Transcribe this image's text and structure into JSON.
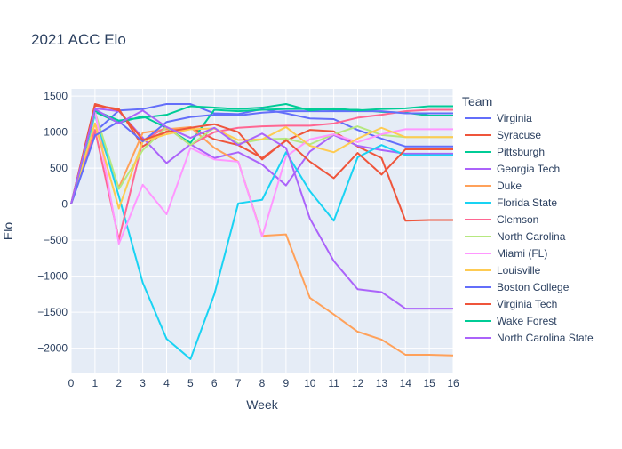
{
  "chart_data": {
    "type": "line",
    "title": "2021 ACC Elo",
    "xlabel": "Week",
    "ylabel": "Elo",
    "legend_title": "Team",
    "legend_position": "right",
    "grid": true,
    "xlim": [
      0,
      16
    ],
    "ylim": [
      -2350,
      1600
    ],
    "x_ticks": [
      0,
      1,
      2,
      3,
      4,
      5,
      6,
      7,
      8,
      9,
      10,
      11,
      12,
      13,
      14,
      15,
      16
    ],
    "y_ticks": [
      -2000,
      -1500,
      -1000,
      -500,
      0,
      500,
      1000,
      1500
    ],
    "y_tick_labels": [
      "−2000",
      "−1500",
      "−1000",
      "−500",
      "0",
      "500",
      "1000",
      "1500"
    ],
    "x": [
      0,
      1,
      2,
      3,
      4,
      5,
      6,
      7,
      8,
      9,
      10,
      11,
      12,
      13,
      14,
      15,
      16
    ],
    "series": [
      {
        "name": "Virginia",
        "color": "#636efa",
        "values": [
          0,
          1000,
          1300,
          1320,
          1390,
          1390,
          1260,
          1250,
          1320,
          1260,
          1190,
          1180,
          1030,
          910,
          800,
          800,
          800
        ]
      },
      {
        "name": "Syracuse",
        "color": "#EF553B",
        "values": [
          0,
          1370,
          1320,
          800,
          1010,
          1070,
          900,
          820,
          640,
          880,
          1030,
          1010,
          800,
          640,
          -230,
          -220,
          -220
        ]
      },
      {
        "name": "Pittsburgh",
        "color": "#00cc96",
        "values": [
          0,
          1280,
          1130,
          1220,
          1060,
          850,
          1310,
          1290,
          1310,
          1320,
          1320,
          1310,
          1310,
          1280,
          1270,
          1230,
          1230
        ]
      },
      {
        "name": "Georgia Tech",
        "color": "#ab63fa",
        "values": [
          0,
          1330,
          1290,
          920,
          570,
          830,
          640,
          720,
          550,
          260,
          730,
          960,
          810,
          750,
          700,
          700,
          700
        ]
      },
      {
        "name": "Duke",
        "color": "#FFA15A",
        "values": [
          0,
          1120,
          230,
          990,
          1040,
          1070,
          780,
          590,
          -440,
          -420,
          -1300,
          -1530,
          -1770,
          -1880,
          -2090,
          -2090,
          -2100
        ]
      },
      {
        "name": "Florida State",
        "color": "#19d3f3",
        "values": [
          0,
          1240,
          110,
          -1090,
          -1870,
          -2150,
          -1250,
          10,
          60,
          720,
          180,
          -230,
          650,
          820,
          680,
          680,
          680
        ]
      },
      {
        "name": "Clemson",
        "color": "#FF6692",
        "values": [
          0,
          1030,
          -490,
          880,
          1070,
          820,
          1000,
          1060,
          1080,
          1090,
          1090,
          1120,
          1200,
          1240,
          1290,
          1310,
          1310
        ]
      },
      {
        "name": "North Carolina",
        "color": "#B6E880",
        "values": [
          0,
          1280,
          210,
          750,
          1070,
          820,
          1060,
          840,
          900,
          910,
          830,
          970,
          1080,
          960,
          930,
          930,
          930
        ]
      },
      {
        "name": "Miami (FL)",
        "color": "#FF97FF",
        "values": [
          0,
          1300,
          -550,
          270,
          -140,
          780,
          620,
          590,
          -450,
          660,
          900,
          970,
          860,
          970,
          1040,
          1040,
          1040
        ]
      },
      {
        "name": "Louisville",
        "color": "#FECB52",
        "values": [
          0,
          1120,
          -60,
          870,
          970,
          1040,
          1050,
          890,
          900,
          1070,
          810,
          720,
          910,
          1060,
          930,
          930,
          930
        ]
      },
      {
        "name": "Boston College",
        "color": "#636efa",
        "values": [
          0,
          950,
          1150,
          870,
          1140,
          1210,
          1240,
          1230,
          1270,
          1290,
          1290,
          1290,
          1290,
          1290,
          1260,
          1260,
          1260
        ]
      },
      {
        "name": "Virginia Tech",
        "color": "#EF553B",
        "values": [
          0,
          1390,
          1300,
          890,
          1000,
          1060,
          1110,
          1000,
          620,
          890,
          590,
          360,
          710,
          410,
          760,
          760,
          760
        ]
      },
      {
        "name": "Wake Forest",
        "color": "#00cc96",
        "values": [
          0,
          1300,
          1160,
          1200,
          1240,
          1360,
          1340,
          1320,
          1340,
          1390,
          1300,
          1330,
          1300,
          1320,
          1330,
          1360,
          1360
        ]
      },
      {
        "name": "North Carolina State",
        "color": "#ab63fa",
        "values": [
          0,
          1320,
          1120,
          1300,
          1070,
          920,
          1060,
          820,
          980,
          780,
          -200,
          -790,
          -1180,
          -1220,
          -1450,
          -1450,
          -1450
        ]
      }
    ]
  }
}
